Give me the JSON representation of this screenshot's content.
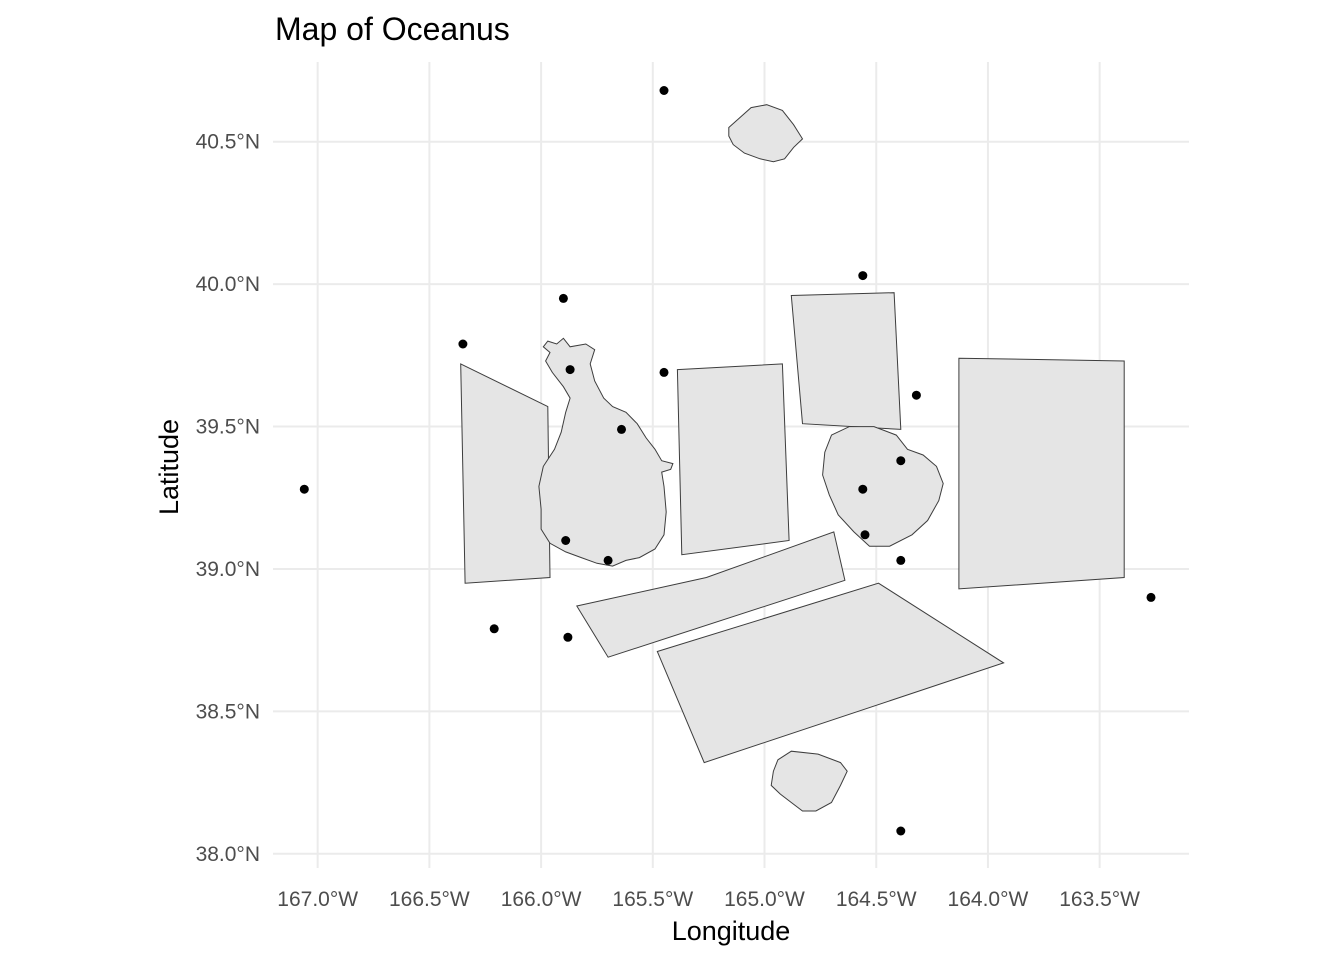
{
  "chart_data": {
    "type": "map",
    "title": "Map of Oceanus",
    "xlabel": "Longitude",
    "ylabel": "Latitude",
    "xlim": [
      -167.2,
      -163.1
    ],
    "ylim": [
      37.95,
      40.78
    ],
    "grid": true,
    "x_ticks": [
      {
        "value": -167.0,
        "label": "167.0°W"
      },
      {
        "value": -166.5,
        "label": "166.5°W"
      },
      {
        "value": -166.0,
        "label": "166.0°W"
      },
      {
        "value": -165.5,
        "label": "165.5°W"
      },
      {
        "value": -165.0,
        "label": "165.0°W"
      },
      {
        "value": -164.5,
        "label": "164.5°W"
      },
      {
        "value": -164.0,
        "label": "164.0°W"
      },
      {
        "value": -163.5,
        "label": "163.5°W"
      }
    ],
    "y_ticks": [
      {
        "value": 38.0,
        "label": "38.0°N"
      },
      {
        "value": 38.5,
        "label": "38.5°N"
      },
      {
        "value": 39.0,
        "label": "39.0°N"
      },
      {
        "value": 39.5,
        "label": "39.5°N"
      },
      {
        "value": 40.0,
        "label": "40.0°N"
      },
      {
        "value": 40.5,
        "label": "40.5°N"
      }
    ],
    "region_fill": "#e5e5e5",
    "region_stroke": "#3d3d3d",
    "point_color": "#000000",
    "regions": [
      {
        "coords": [
          [
            -166.36,
            39.72
          ],
          [
            -165.97,
            39.57
          ],
          [
            -165.96,
            38.97
          ],
          [
            -166.34,
            38.95
          ]
        ]
      },
      {
        "coords": [
          [
            -165.39,
            39.7
          ],
          [
            -164.92,
            39.72
          ],
          [
            -164.89,
            39.1
          ],
          [
            -165.37,
            39.05
          ]
        ]
      },
      {
        "coords": [
          [
            -164.88,
            39.96
          ],
          [
            -164.42,
            39.97
          ],
          [
            -164.39,
            39.49
          ],
          [
            -164.83,
            39.51
          ]
        ]
      },
      {
        "coords": [
          [
            -164.13,
            39.74
          ],
          [
            -163.39,
            39.73
          ],
          [
            -163.39,
            38.97
          ],
          [
            -164.13,
            38.93
          ]
        ]
      },
      {
        "coords": [
          [
            -165.84,
            38.87
          ],
          [
            -165.26,
            38.97
          ],
          [
            -164.69,
            39.13
          ],
          [
            -164.64,
            38.96
          ],
          [
            -165.7,
            38.69
          ]
        ]
      },
      {
        "coords": [
          [
            -165.48,
            38.71
          ],
          [
            -164.49,
            38.95
          ],
          [
            -163.93,
            38.67
          ],
          [
            -165.27,
            38.32
          ]
        ]
      },
      {
        "coords": [
          [
            -165.9,
            39.81
          ],
          [
            -165.87,
            39.78
          ],
          [
            -165.8,
            39.79
          ],
          [
            -165.76,
            39.77
          ],
          [
            -165.78,
            39.72
          ],
          [
            -165.76,
            39.66
          ],
          [
            -165.72,
            39.6
          ],
          [
            -165.68,
            39.57
          ],
          [
            -165.62,
            39.55
          ],
          [
            -165.57,
            39.51
          ],
          [
            -165.53,
            39.46
          ],
          [
            -165.49,
            39.42
          ],
          [
            -165.46,
            39.38
          ],
          [
            -165.41,
            39.37
          ],
          [
            -165.42,
            39.35
          ],
          [
            -165.46,
            39.34
          ],
          [
            -165.45,
            39.29
          ],
          [
            -165.44,
            39.2
          ],
          [
            -165.45,
            39.12
          ],
          [
            -165.49,
            39.07
          ],
          [
            -165.56,
            39.04
          ],
          [
            -165.62,
            39.03
          ],
          [
            -165.68,
            39.01
          ],
          [
            -165.75,
            39.02
          ],
          [
            -165.82,
            39.04
          ],
          [
            -165.89,
            39.06
          ],
          [
            -165.96,
            39.09
          ],
          [
            -166.0,
            39.14
          ],
          [
            -166.0,
            39.21
          ],
          [
            -166.01,
            39.29
          ],
          [
            -165.99,
            39.36
          ],
          [
            -165.94,
            39.42
          ],
          [
            -165.91,
            39.48
          ],
          [
            -165.89,
            39.55
          ],
          [
            -165.87,
            39.6
          ],
          [
            -165.9,
            39.64
          ],
          [
            -165.95,
            39.69
          ],
          [
            -165.98,
            39.73
          ],
          [
            -165.96,
            39.76
          ],
          [
            -165.99,
            39.78
          ],
          [
            -165.97,
            39.8
          ],
          [
            -165.93,
            39.79
          ]
        ]
      },
      {
        "coords": [
          [
            -164.7,
            39.47
          ],
          [
            -164.62,
            39.5
          ],
          [
            -164.51,
            39.5
          ],
          [
            -164.41,
            39.47
          ],
          [
            -164.36,
            39.42
          ],
          [
            -164.29,
            39.4
          ],
          [
            -164.23,
            39.36
          ],
          [
            -164.2,
            39.3
          ],
          [
            -164.22,
            39.24
          ],
          [
            -164.27,
            39.17
          ],
          [
            -164.34,
            39.12
          ],
          [
            -164.44,
            39.08
          ],
          [
            -164.53,
            39.08
          ],
          [
            -164.6,
            39.13
          ],
          [
            -164.67,
            39.19
          ],
          [
            -164.71,
            39.26
          ],
          [
            -164.74,
            39.33
          ],
          [
            -164.73,
            39.41
          ]
        ]
      },
      {
        "coords": [
          [
            -165.16,
            40.55
          ],
          [
            -165.06,
            40.62
          ],
          [
            -164.99,
            40.63
          ],
          [
            -164.92,
            40.61
          ],
          [
            -164.87,
            40.56
          ],
          [
            -164.83,
            40.51
          ],
          [
            -164.87,
            40.48
          ],
          [
            -164.91,
            40.44
          ],
          [
            -164.96,
            40.43
          ],
          [
            -165.02,
            40.44
          ],
          [
            -165.09,
            40.46
          ],
          [
            -165.14,
            40.49
          ],
          [
            -165.16,
            40.52
          ]
        ]
      },
      {
        "coords": [
          [
            -164.94,
            38.33
          ],
          [
            -164.88,
            38.36
          ],
          [
            -164.76,
            38.35
          ],
          [
            -164.66,
            38.32
          ],
          [
            -164.63,
            38.29
          ],
          [
            -164.66,
            38.24
          ],
          [
            -164.7,
            38.18
          ],
          [
            -164.77,
            38.15
          ],
          [
            -164.83,
            38.15
          ],
          [
            -164.88,
            38.18
          ],
          [
            -164.93,
            38.21
          ],
          [
            -164.97,
            38.24
          ],
          [
            -164.96,
            38.29
          ]
        ]
      }
    ],
    "points": [
      {
        "lon": -165.45,
        "lat": 40.68
      },
      {
        "lon": -164.56,
        "lat": 40.03
      },
      {
        "lon": -165.9,
        "lat": 39.95
      },
      {
        "lon": -166.35,
        "lat": 39.79
      },
      {
        "lon": -165.87,
        "lat": 39.7
      },
      {
        "lon": -165.45,
        "lat": 39.69
      },
      {
        "lon": -164.32,
        "lat": 39.61
      },
      {
        "lon": -165.64,
        "lat": 39.49
      },
      {
        "lon": -164.39,
        "lat": 39.38
      },
      {
        "lon": -167.06,
        "lat": 39.28
      },
      {
        "lon": -164.56,
        "lat": 39.28
      },
      {
        "lon": -164.55,
        "lat": 39.12
      },
      {
        "lon": -165.89,
        "lat": 39.1
      },
      {
        "lon": -165.7,
        "lat": 39.03
      },
      {
        "lon": -164.39,
        "lat": 39.03
      },
      {
        "lon": -163.27,
        "lat": 38.9
      },
      {
        "lon": -166.21,
        "lat": 38.79
      },
      {
        "lon": -165.88,
        "lat": 38.76
      },
      {
        "lon": -164.39,
        "lat": 38.08
      }
    ]
  }
}
